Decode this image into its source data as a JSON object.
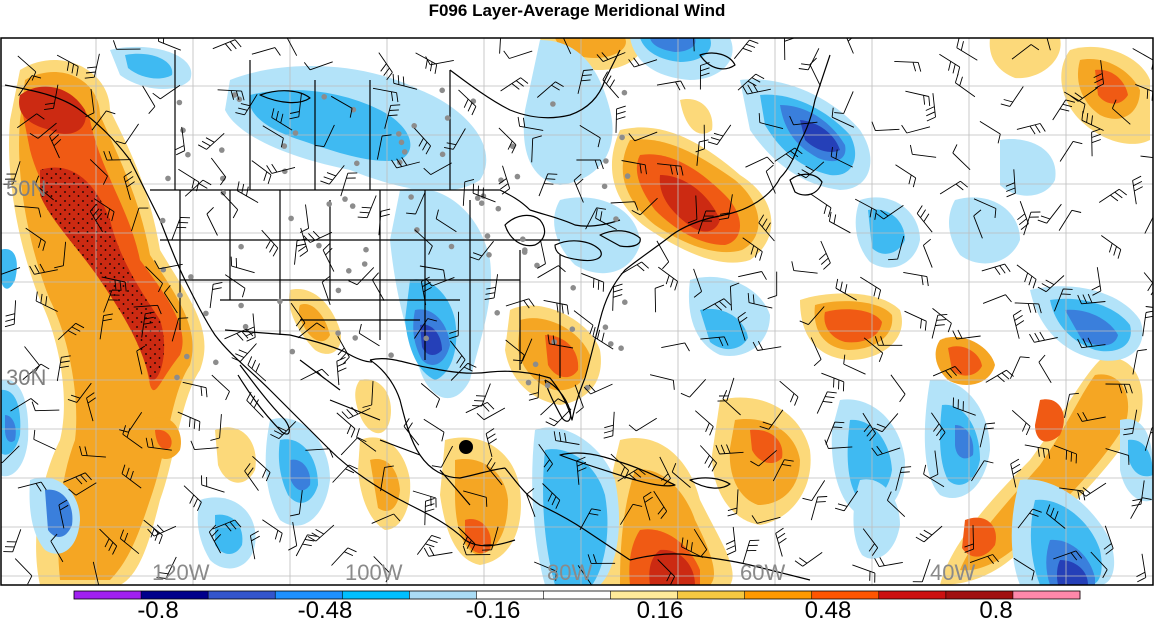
{
  "title": "F096 Layer-Average Meridional Wind",
  "lat_labels": [
    "50N",
    "30N"
  ],
  "lon_labels": [
    "120W",
    "100W",
    "80W",
    "60W",
    "40W"
  ],
  "colorbar": {
    "colors": [
      "#a020f0",
      "#00008b",
      "#3355cc",
      "#1e90ff",
      "#00bfff",
      "#aadcf5",
      "#ffffff",
      "#ffffff",
      "#ffeb9a",
      "#f5c842",
      "#ff9900",
      "#ff5500",
      "#cc1111",
      "#a01010",
      "#ff88aa"
    ],
    "labels": [
      "-0.8",
      "-0.48",
      "-0.16",
      "0.16",
      "0.48",
      "0.8"
    ]
  },
  "colors": {
    "dark_red": "#cc2a12",
    "red_orange": "#f05a14",
    "orange": "#f5a623",
    "light_orange": "#fcd97a",
    "dark_blue": "#2540b8",
    "blue": "#3a7fdc",
    "mid_blue": "#3fbaf2",
    "light_blue": "#b3e3f9"
  },
  "marker": "black-dot-marker"
}
